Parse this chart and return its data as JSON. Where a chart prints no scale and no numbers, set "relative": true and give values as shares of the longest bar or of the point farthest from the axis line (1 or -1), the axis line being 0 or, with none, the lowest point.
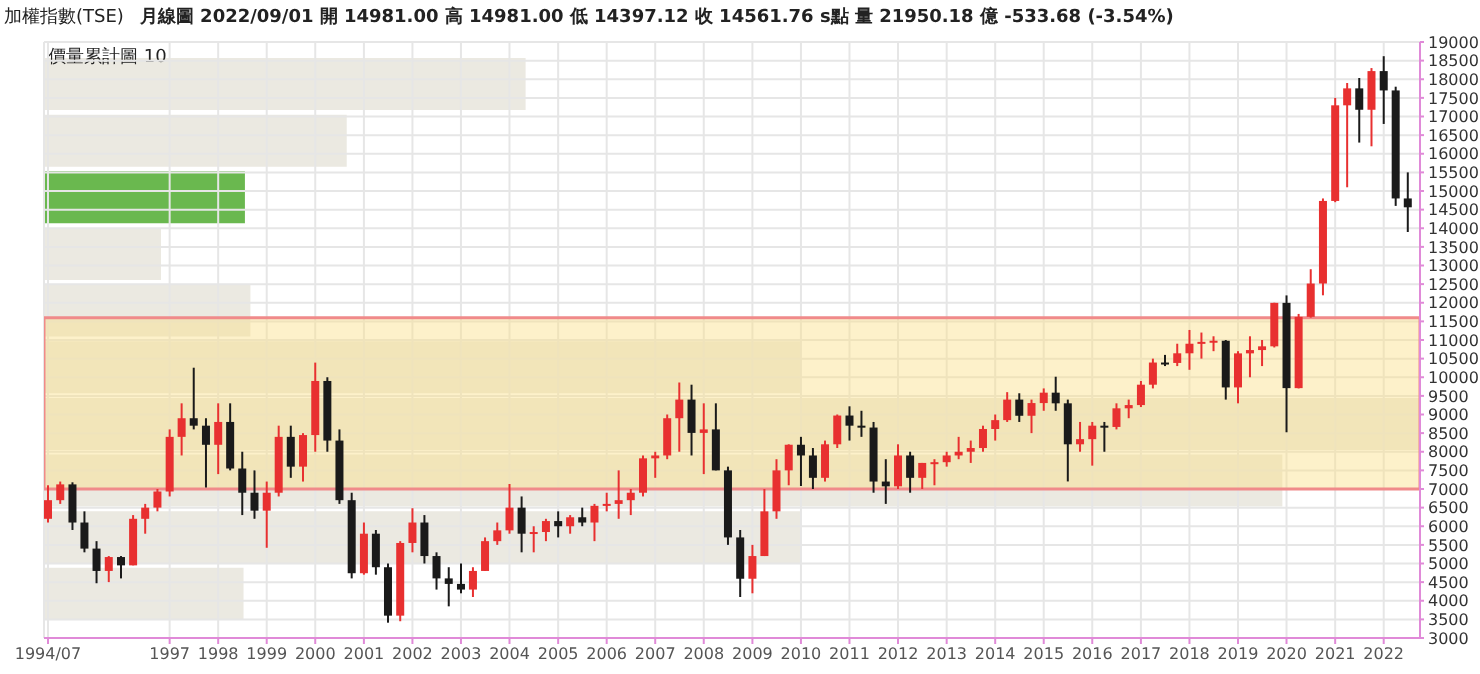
{
  "chart_data": [
    {
      "type": "candlestick",
      "title": "加權指數(TSE)",
      "subtitle": "月線圖 2022/09/01 開 14981.00 高 14981.00 低 14397.12 收 14561.76 s點 量 21950.18 億 -533.68 (-3.54%)",
      "x": [
        "1994-07",
        "1994-10",
        "1995-01",
        "1995-04",
        "1995-07",
        "1995-10",
        "1996-01",
        "1996-04",
        "1996-07",
        "1996-10",
        "1997-01",
        "1997-04",
        "1997-07",
        "1997-10",
        "1998-01",
        "1998-04",
        "1998-07",
        "1998-10",
        "1999-01",
        "1999-04",
        "1999-07",
        "1999-10",
        "2000-01",
        "2000-04",
        "2000-07",
        "2000-10",
        "2001-01",
        "2001-04",
        "2001-07",
        "2001-10",
        "2002-01",
        "2002-04",
        "2002-07",
        "2002-10",
        "2003-01",
        "2003-04",
        "2003-07",
        "2003-10",
        "2004-01",
        "2004-04",
        "2004-07",
        "2004-10",
        "2005-01",
        "2005-04",
        "2005-07",
        "2005-10",
        "2006-01",
        "2006-04",
        "2006-07",
        "2006-10",
        "2007-01",
        "2007-04",
        "2007-07",
        "2007-10",
        "2008-01",
        "2008-04",
        "2008-07",
        "2008-10",
        "2009-01",
        "2009-04",
        "2009-07",
        "2009-10",
        "2010-01",
        "2010-04",
        "2010-07",
        "2010-10",
        "2011-01",
        "2011-04",
        "2011-07",
        "2011-10",
        "2012-01",
        "2012-04",
        "2012-07",
        "2012-10",
        "2013-01",
        "2013-04",
        "2013-07",
        "2013-10",
        "2014-01",
        "2014-04",
        "2014-07",
        "2014-10",
        "2015-01",
        "2015-04",
        "2015-07",
        "2015-10",
        "2016-01",
        "2016-04",
        "2016-07",
        "2016-10",
        "2017-01",
        "2017-04",
        "2017-07",
        "2017-10",
        "2018-01",
        "2018-04",
        "2018-07",
        "2018-10",
        "2019-01",
        "2019-04",
        "2019-07",
        "2019-10",
        "2020-01",
        "2020-04",
        "2020-07",
        "2020-10",
        "2021-01",
        "2021-04",
        "2021-07",
        "2021-10",
        "2022-01",
        "2022-04",
        "2022-07"
      ],
      "ohlc": [
        [
          6200,
          7100,
          6100,
          6700
        ],
        [
          6700,
          7200,
          6600,
          7124
        ],
        [
          7124,
          7180,
          5900,
          6100
        ],
        [
          6100,
          6400,
          5300,
          5400
        ],
        [
          5400,
          5600,
          4470,
          4800
        ],
        [
          4800,
          5200,
          4500,
          5173
        ],
        [
          5173,
          5200,
          4600,
          4950
        ],
        [
          4950,
          6300,
          4950,
          6200
        ],
        [
          6200,
          6600,
          5800,
          6500
        ],
        [
          6500,
          7000,
          6400,
          6933
        ],
        [
          6933,
          8600,
          6800,
          8400
        ],
        [
          8400,
          9300,
          7900,
          8900
        ],
        [
          8900,
          10256,
          8600,
          8700
        ],
        [
          8700,
          8900,
          7040,
          8187
        ],
        [
          8187,
          9300,
          7400,
          8800
        ],
        [
          8800,
          9300,
          7500,
          7550
        ],
        [
          7550,
          8000,
          6300,
          6900
        ],
        [
          6900,
          7500,
          6200,
          6418
        ],
        [
          6418,
          7200,
          5422,
          6900
        ],
        [
          6900,
          8700,
          6800,
          8400
        ],
        [
          8400,
          8700,
          7300,
          7600
        ],
        [
          7600,
          8500,
          7200,
          8448
        ],
        [
          8448,
          10393,
          8000,
          9900
        ],
        [
          9900,
          10000,
          8000,
          8300
        ],
        [
          8300,
          8600,
          6600,
          6700
        ],
        [
          6700,
          6900,
          4600,
          4739
        ],
        [
          4739,
          6100,
          4700,
          5800
        ],
        [
          5800,
          5900,
          4700,
          4900
        ],
        [
          4900,
          5000,
          3411,
          3600
        ],
        [
          3600,
          5600,
          3450,
          5551
        ],
        [
          5551,
          6484,
          5300,
          6100
        ],
        [
          6100,
          6300,
          5000,
          5200
        ],
        [
          5200,
          5300,
          4300,
          4600
        ],
        [
          4600,
          4900,
          3850,
          4452
        ],
        [
          4452,
          5000,
          4200,
          4300
        ],
        [
          4300,
          4900,
          4100,
          4800
        ],
        [
          4800,
          5700,
          4800,
          5600
        ],
        [
          5600,
          6100,
          5500,
          5890
        ],
        [
          5890,
          7135,
          5800,
          6500
        ],
        [
          6500,
          6800,
          5300,
          5800
        ],
        [
          5800,
          6000,
          5300,
          5845
        ],
        [
          5845,
          6200,
          5600,
          6139
        ],
        [
          6139,
          6400,
          5700,
          6000
        ],
        [
          6000,
          6300,
          5800,
          6241
        ],
        [
          6241,
          6500,
          6000,
          6100
        ],
        [
          6100,
          6600,
          5600,
          6548
        ],
        [
          6548,
          6900,
          6400,
          6600
        ],
        [
          6600,
          7500,
          6200,
          6700
        ],
        [
          6700,
          7000,
          6300,
          6900
        ],
        [
          6900,
          7900,
          6800,
          7823
        ],
        [
          7823,
          8000,
          7300,
          7900
        ],
        [
          7900,
          9000,
          7800,
          8900
        ],
        [
          8900,
          9859,
          8000,
          9400
        ],
        [
          9400,
          9800,
          7900,
          8506
        ],
        [
          8506,
          9300,
          7400,
          8600
        ],
        [
          8600,
          9300,
          7500,
          7500
        ],
        [
          7500,
          7600,
          5500,
          5700
        ],
        [
          5700,
          5900,
          4100,
          4591
        ],
        [
          4591,
          5500,
          4200,
          5200
        ],
        [
          5200,
          7000,
          5200,
          6400
        ],
        [
          6400,
          7800,
          6200,
          7500
        ],
        [
          7500,
          8200,
          7100,
          8188
        ],
        [
          8188,
          8400,
          7080,
          7900
        ],
        [
          7900,
          8100,
          7000,
          7300
        ],
        [
          7300,
          8300,
          7200,
          8200
        ],
        [
          8200,
          9000,
          8100,
          8972
        ],
        [
          8972,
          9220,
          8300,
          8700
        ],
        [
          8700,
          9100,
          8400,
          8650
        ],
        [
          8650,
          8800,
          6900,
          7200
        ],
        [
          7200,
          7800,
          6600,
          7072
        ],
        [
          7072,
          8200,
          7000,
          7900
        ],
        [
          7900,
          8000,
          6900,
          7300
        ],
        [
          7300,
          7700,
          7000,
          7700
        ],
        [
          7700,
          7800,
          7100,
          7720
        ],
        [
          7720,
          8000,
          7600,
          7900
        ],
        [
          7900,
          8400,
          7800,
          8000
        ],
        [
          8000,
          8300,
          7700,
          8100
        ],
        [
          8100,
          8700,
          8000,
          8611
        ],
        [
          8611,
          9000,
          8300,
          8849
        ],
        [
          8849,
          9600,
          8800,
          9400
        ],
        [
          9400,
          9570,
          8800,
          8966
        ],
        [
          8966,
          9400,
          8500,
          9307
        ],
        [
          9307,
          9700,
          9100,
          9586
        ],
        [
          9586,
          10014,
          9100,
          9300
        ],
        [
          9300,
          9400,
          7203,
          8200
        ],
        [
          8200,
          8800,
          8000,
          8338
        ],
        [
          8338,
          8800,
          7627,
          8700
        ],
        [
          8700,
          8800,
          8000,
          8666
        ],
        [
          8666,
          9300,
          8600,
          9166
        ],
        [
          9166,
          9400,
          8900,
          9253
        ],
        [
          9253,
          9900,
          9200,
          9800
        ],
        [
          9800,
          10500,
          9700,
          10395
        ],
        [
          10395,
          10600,
          10300,
          10384
        ],
        [
          10384,
          10900,
          10300,
          10643
        ],
        [
          10643,
          11270,
          10200,
          10900
        ],
        [
          10900,
          11200,
          10500,
          10950
        ],
        [
          10950,
          11100,
          10700,
          10980
        ],
        [
          10980,
          11000,
          9400,
          9727
        ],
        [
          9727,
          10700,
          9300,
          10641
        ],
        [
          10641,
          11100,
          10000,
          10730
        ],
        [
          10730,
          11000,
          10300,
          10830
        ],
        [
          10830,
          12000,
          10800,
          11997
        ],
        [
          11997,
          12197,
          8523,
          9708
        ],
        [
          9708,
          11700,
          9700,
          11621
        ],
        [
          11621,
          12900,
          11600,
          12516
        ],
        [
          12516,
          14800,
          12200,
          14733
        ],
        [
          14733,
          17500,
          14700,
          17300
        ],
        [
          17300,
          17900,
          15100,
          17755
        ],
        [
          17755,
          18034,
          16300,
          17181
        ],
        [
          17181,
          18300,
          16200,
          18219
        ],
        [
          18219,
          18619,
          16800,
          17700
        ],
        [
          17700,
          17800,
          14600,
          14800
        ],
        [
          14800,
          15500,
          13900,
          14562
        ]
      ],
      "colors": [
        "#e83030",
        "#e83030",
        "#1a1a1a",
        "#1a1a1a",
        "#1a1a1a",
        "#e83030",
        "#1a1a1a",
        "#e83030",
        "#e83030",
        "#e83030",
        "#e83030",
        "#e83030",
        "#1a1a1a",
        "#1a1a1a",
        "#e83030",
        "#1a1a1a",
        "#1a1a1a",
        "#1a1a1a",
        "#e83030",
        "#e83030",
        "#1a1a1a",
        "#e83030",
        "#e83030",
        "#1a1a1a",
        "#1a1a1a",
        "#1a1a1a",
        "#e83030",
        "#1a1a1a",
        "#1a1a1a",
        "#e83030",
        "#e83030",
        "#1a1a1a",
        "#1a1a1a",
        "#1a1a1a",
        "#1a1a1a",
        "#e83030",
        "#e83030",
        "#e83030",
        "#e83030",
        "#1a1a1a",
        "#e83030",
        "#e83030",
        "#1a1a1a",
        "#e83030",
        "#1a1a1a",
        "#e83030",
        "#e83030",
        "#e83030",
        "#e83030",
        "#e83030",
        "#e83030",
        "#e83030",
        "#e83030",
        "#1a1a1a",
        "#e83030",
        "#1a1a1a",
        "#1a1a1a",
        "#1a1a1a",
        "#e83030",
        "#e83030",
        "#e83030",
        "#e83030",
        "#1a1a1a",
        "#1a1a1a",
        "#e83030",
        "#e83030",
        "#1a1a1a",
        "#1a1a1a",
        "#1a1a1a",
        "#1a1a1a",
        "#e83030",
        "#1a1a1a",
        "#e83030",
        "#e83030",
        "#e83030",
        "#e83030",
        "#e83030",
        "#e83030",
        "#e83030",
        "#e83030",
        "#1a1a1a",
        "#e83030",
        "#e83030",
        "#1a1a1a",
        "#1a1a1a",
        "#e83030",
        "#e83030",
        "#1a1a1a",
        "#e83030",
        "#e83030",
        "#e83030",
        "#e83030",
        "#1a1a1a",
        "#e83030",
        "#e83030",
        "#e83030",
        "#e83030",
        "#1a1a1a",
        "#e83030",
        "#e83030",
        "#e83030",
        "#e83030",
        "#1a1a1a",
        "#e83030",
        "#e83030",
        "#e83030",
        "#e83030",
        "#e83030",
        "#1a1a1a",
        "#e83030",
        "#1a1a1a",
        "#1a1a1a",
        "#1a1a1a"
      ],
      "xlim": [
        "1994-06",
        "2022-10"
      ],
      "xticks": [
        {
          "value": "1994-07",
          "label": "1994/07"
        },
        "1997",
        "1998",
        "1999",
        "2000",
        "2001",
        "2002",
        "2003",
        "2004",
        "2005",
        "2006",
        "2007",
        "2008",
        "2009",
        "2010",
        "2011",
        "2012",
        "2013",
        "2014",
        "2015",
        "2016",
        "2017",
        "2018",
        "2019",
        "2020",
        "2021",
        "2022"
      ],
      "ylim": [
        3000,
        19000
      ],
      "yticks": [
        3000,
        3500,
        4000,
        4500,
        5000,
        5500,
        6000,
        6500,
        7000,
        7500,
        8000,
        8500,
        9000,
        9500,
        10000,
        10500,
        11000,
        11500,
        12000,
        12500,
        13000,
        13500,
        14000,
        14500,
        15000,
        15500,
        16000,
        16500,
        17000,
        17500,
        18000,
        18500,
        19000
      ],
      "bands": [
        {
          "axis": "y",
          "from": 7000,
          "to": 11600,
          "color": "#fbe08a"
        }
      ],
      "grid": true
    },
    {
      "type": "bar",
      "title": "價量累計圖 10",
      "orientation": "horizontal",
      "relative": true,
      "categories": [
        null,
        null,
        null,
        null,
        null,
        null,
        null,
        null,
        null,
        null
      ],
      "values": [
        0.35,
        0.22,
        0.146,
        0.085,
        0.15,
        0.55,
        1,
        0.9,
        0.55,
        0.145
      ],
      "colors": [
        "#ebe9e1",
        "#ebe9e1",
        "#6ab84f",
        "#ebe9e1",
        "#ebe9e1",
        "#ebe9e1",
        "#ebe9e1",
        "#ebe9e1",
        "#ebe9e1",
        "#ebe9e1"
      ]
    }
  ]
}
